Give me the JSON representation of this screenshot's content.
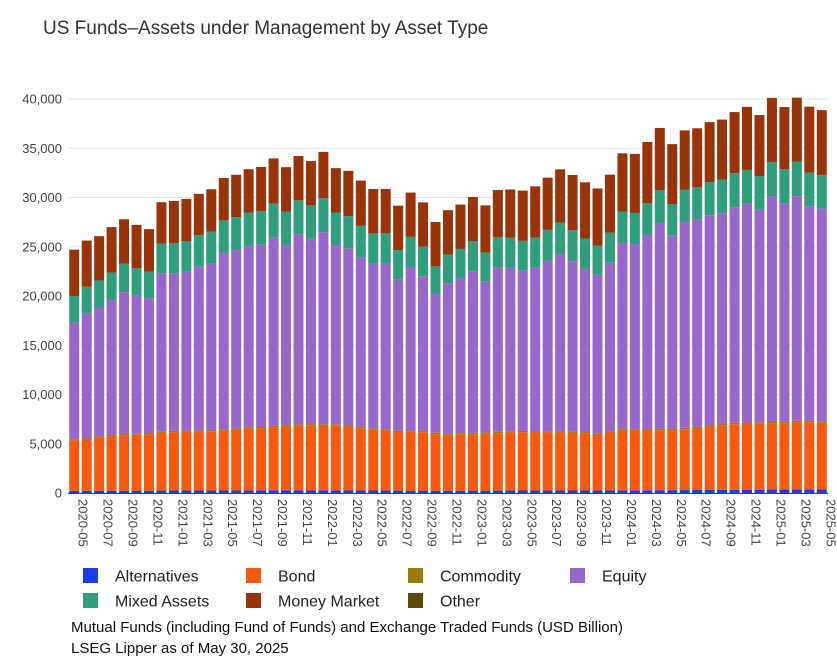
{
  "chart_data": {
    "type": "bar",
    "stacked": true,
    "title": "US Funds–Assets under Management by Asset Type",
    "subtitle": "",
    "xlabel": "",
    "ylabel": "",
    "ylim": [
      0,
      40000
    ],
    "yticks": [
      0,
      5000,
      10000,
      15000,
      20000,
      25000,
      30000,
      35000,
      40000
    ],
    "ytick_labels": [
      "0",
      "5,000",
      "10,000",
      "15,000",
      "20,000",
      "25,000",
      "30,000",
      "35,000",
      "40,000"
    ],
    "grid": "horizontal",
    "legend_position": "bottom",
    "categories": [
      "2020-05",
      "2020-06",
      "2020-07",
      "2020-08",
      "2020-09",
      "2020-10",
      "2020-11",
      "2020-12",
      "2021-01",
      "2021-02",
      "2021-03",
      "2021-04",
      "2021-05",
      "2021-06",
      "2021-07",
      "2021-08",
      "2021-09",
      "2021-10",
      "2021-11",
      "2021-12",
      "2022-01",
      "2022-02",
      "2022-03",
      "2022-04",
      "2022-05",
      "2022-06",
      "2022-07",
      "2022-08",
      "2022-09",
      "2022-10",
      "2022-11",
      "2022-12",
      "2023-01",
      "2023-02",
      "2023-03",
      "2023-04",
      "2023-05",
      "2023-06",
      "2023-07",
      "2023-08",
      "2023-09",
      "2023-10",
      "2023-11",
      "2023-12",
      "2024-01",
      "2024-02",
      "2024-03",
      "2024-04",
      "2024-05",
      "2024-06",
      "2024-07",
      "2024-08",
      "2024-09",
      "2024-10",
      "2024-11",
      "2024-12",
      "2025-01",
      "2025-02",
      "2025-03",
      "2025-04",
      "2025-05"
    ],
    "xtick_labels": [
      "2020-05",
      "2020-07",
      "2020-09",
      "2020-11",
      "2021-01",
      "2021-03",
      "2021-05",
      "2021-07",
      "2021-09",
      "2021-11",
      "2022-01",
      "2022-03",
      "2022-05",
      "2022-07",
      "2022-09",
      "2022-11",
      "2023-01",
      "2023-03",
      "2023-05",
      "2023-07",
      "2023-09",
      "2023-11",
      "2024-01",
      "2024-03",
      "2024-05",
      "2024-07",
      "2024-09",
      "2024-11",
      "2025-01",
      "2025-03",
      "2025-05"
    ],
    "series": [
      {
        "name": "Alternatives",
        "color": "#1a3de8",
        "values": [
          220,
          220,
          220,
          230,
          230,
          230,
          230,
          240,
          250,
          250,
          250,
          250,
          260,
          260,
          270,
          270,
          270,
          270,
          270,
          270,
          270,
          270,
          260,
          260,
          250,
          250,
          240,
          240,
          240,
          230,
          230,
          230,
          240,
          240,
          240,
          250,
          250,
          250,
          250,
          250,
          250,
          250,
          250,
          260,
          270,
          270,
          280,
          290,
          290,
          300,
          300,
          310,
          320,
          330,
          340,
          340,
          350,
          350,
          350,
          350,
          360
        ]
      },
      {
        "name": "Bond",
        "color": "#f75a0f",
        "values": [
          5130,
          5200,
          5400,
          5550,
          5650,
          5680,
          5750,
          5860,
          5930,
          5980,
          6000,
          6020,
          6100,
          6180,
          6270,
          6300,
          6420,
          6480,
          6560,
          6600,
          6580,
          6570,
          6450,
          6320,
          6170,
          6080,
          5950,
          5980,
          5930,
          5750,
          5650,
          5720,
          5730,
          5780,
          5840,
          5880,
          5920,
          5900,
          5880,
          5880,
          5850,
          5810,
          5690,
          5880,
          6080,
          6080,
          6080,
          6090,
          6100,
          6180,
          6300,
          6450,
          6550,
          6650,
          6670,
          6690,
          6720,
          6740,
          6850,
          6830,
          6770
        ]
      },
      {
        "name": "Commodity",
        "color": "#9c7a0a",
        "values": [
          100,
          110,
          110,
          110,
          110,
          110,
          110,
          120,
          120,
          120,
          120,
          120,
          120,
          120,
          130,
          130,
          130,
          130,
          130,
          130,
          130,
          140,
          140,
          140,
          140,
          130,
          130,
          130,
          130,
          130,
          130,
          130,
          130,
          130,
          130,
          130,
          130,
          130,
          130,
          130,
          130,
          130,
          130,
          130,
          130,
          130,
          130,
          130,
          130,
          130,
          130,
          140,
          140,
          140,
          140,
          140,
          140,
          140,
          140,
          140,
          140
        ]
      },
      {
        "name": "Equity",
        "color": "#9966cc",
        "values": [
          11850,
          12700,
          13100,
          13700,
          14400,
          14000,
          13700,
          16100,
          16000,
          16100,
          16600,
          16900,
          17900,
          18100,
          18400,
          18500,
          19100,
          18300,
          19300,
          18800,
          19500,
          18200,
          18000,
          17200,
          16700,
          16800,
          15400,
          16600,
          15700,
          14100,
          15300,
          15700,
          16400,
          15300,
          16700,
          16600,
          16300,
          16600,
          17300,
          18000,
          17300,
          16600,
          16100,
          17100,
          18900,
          18800,
          19700,
          20900,
          19600,
          20900,
          21000,
          21300,
          21400,
          21900,
          22200,
          21600,
          22900,
          22200,
          22800,
          21800,
          21600
        ]
      },
      {
        "name": "Mixed Assets",
        "color": "#2e9e7c",
        "values": [
          2700,
          2700,
          2750,
          2800,
          2900,
          2800,
          2700,
          3000,
          3050,
          3100,
          3200,
          3250,
          3300,
          3350,
          3400,
          3400,
          3450,
          3400,
          3450,
          3400,
          3450,
          3300,
          3250,
          3200,
          3100,
          3100,
          2950,
          3050,
          3000,
          2800,
          2900,
          3000,
          3050,
          2950,
          3050,
          3050,
          3000,
          3050,
          3150,
          3200,
          3150,
          3050,
          2950,
          3050,
          3200,
          3150,
          3250,
          3350,
          3200,
          3300,
          3300,
          3350,
          3400,
          3450,
          3450,
          3400,
          3500,
          3450,
          3500,
          3400,
          3400
        ]
      },
      {
        "name": "Money Market",
        "color": "#993309",
        "values": [
          4700,
          4700,
          4500,
          4600,
          4500,
          4400,
          4300,
          4200,
          4300,
          4300,
          4200,
          4300,
          4300,
          4300,
          4400,
          4500,
          4600,
          4500,
          4500,
          4500,
          4700,
          4500,
          4600,
          4600,
          4500,
          4500,
          4500,
          4500,
          4500,
          4500,
          4500,
          4500,
          4500,
          4800,
          4800,
          4900,
          5100,
          5200,
          5300,
          5400,
          5600,
          5700,
          5800,
          5900,
          5900,
          6000,
          6200,
          6300,
          6100,
          6000,
          6000,
          6100,
          6100,
          6200,
          6400,
          6200,
          6500,
          6300,
          6500,
          6700,
          6600
        ]
      },
      {
        "name": "Other",
        "color": "#5e4805",
        "values": [
          0,
          0,
          0,
          0,
          0,
          0,
          0,
          0,
          0,
          0,
          0,
          0,
          0,
          0,
          0,
          0,
          0,
          0,
          0,
          0,
          0,
          0,
          0,
          0,
          0,
          0,
          0,
          0,
          0,
          0,
          0,
          0,
          0,
          0,
          0,
          0,
          0,
          0,
          0,
          0,
          0,
          0,
          0,
          0,
          0,
          0,
          0,
          0,
          0,
          0,
          0,
          0,
          0,
          0,
          0,
          0,
          0,
          0,
          0,
          0,
          0
        ]
      }
    ],
    "notes": [
      "Mutual Funds (including Fund of Funds) and Exchange Traded Funds (USD Billion)",
      "LSEG Lipper as of May 30, 2025"
    ]
  }
}
